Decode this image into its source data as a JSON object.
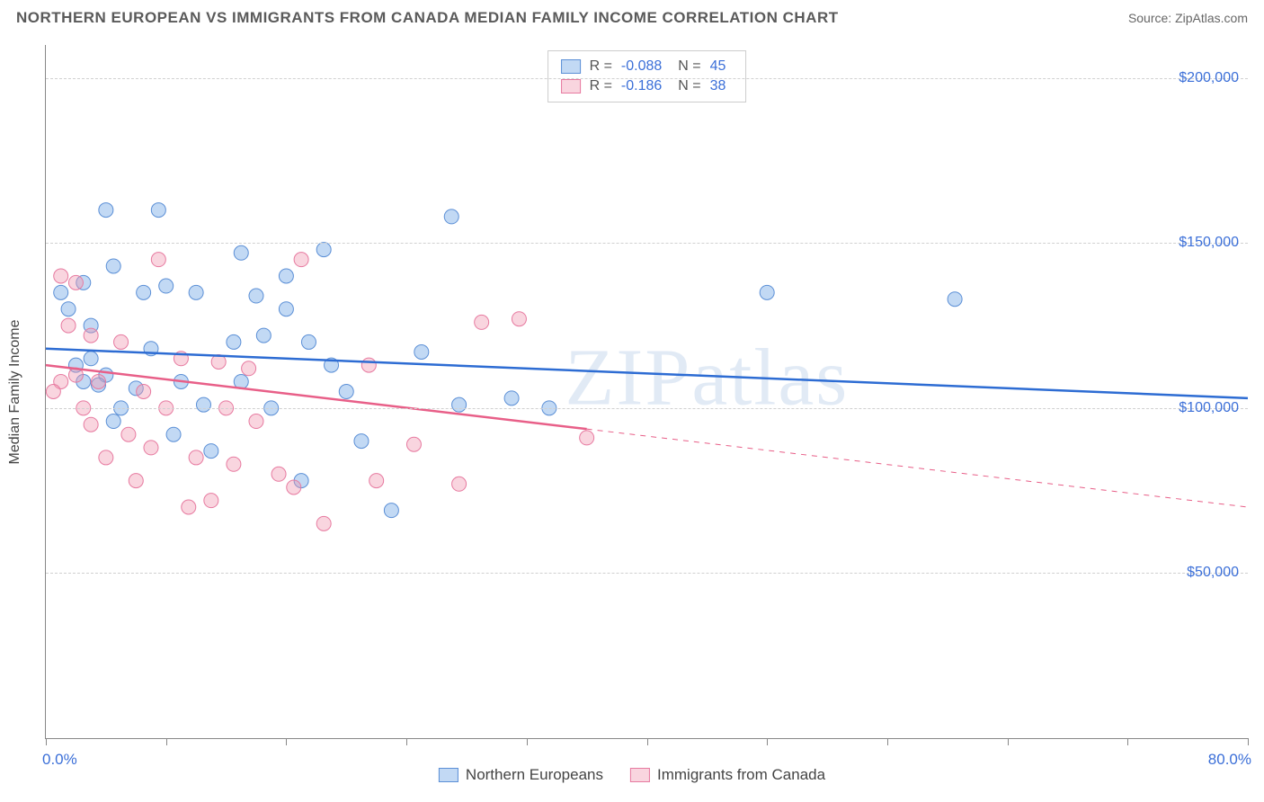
{
  "header": {
    "title": "NORTHERN EUROPEAN VS IMMIGRANTS FROM CANADA MEDIAN FAMILY INCOME CORRELATION CHART",
    "source": "Source: ZipAtlas.com"
  },
  "watermark": "ZIPatlas",
  "chart": {
    "type": "scatter",
    "y_axis_label": "Median Family Income",
    "background_color": "#ffffff",
    "grid_color": "#d0d0d0",
    "axis_color": "#888888",
    "x_range": {
      "min": 0,
      "max": 80,
      "min_label": "0.0%",
      "max_label": "80.0%"
    },
    "y_range": {
      "min": 0,
      "max": 210000
    },
    "y_ticks": [
      {
        "value": 50000,
        "label": "$50,000"
      },
      {
        "value": 100000,
        "label": "$100,000"
      },
      {
        "value": 150000,
        "label": "$150,000"
      },
      {
        "value": 200000,
        "label": "$200,000"
      }
    ],
    "x_tick_values": [
      0,
      8,
      16,
      24,
      32,
      40,
      48,
      56,
      64,
      72,
      80
    ],
    "axis_label_color": "#3b6fd8",
    "title_fontsize": 17,
    "label_fontsize": 16,
    "marker_radius": 8,
    "series": [
      {
        "name": "Northern Europeans",
        "color_fill": "rgba(120,170,230,0.45)",
        "color_stroke": "#5b8fd6",
        "line_color": "#2d6cd3",
        "line_width": 2.5,
        "R": "-0.088",
        "N": "45",
        "trend": {
          "x1": 0,
          "y1": 118000,
          "x2": 80,
          "y2": 103000,
          "solid_until_x": 80
        },
        "points": [
          {
            "x": 4.0,
            "y": 160000
          },
          {
            "x": 7.5,
            "y": 160000
          },
          {
            "x": 4.5,
            "y": 143000
          },
          {
            "x": 13.0,
            "y": 147000
          },
          {
            "x": 18.5,
            "y": 148000
          },
          {
            "x": 1.0,
            "y": 135000
          },
          {
            "x": 1.5,
            "y": 130000
          },
          {
            "x": 2.5,
            "y": 138000
          },
          {
            "x": 6.5,
            "y": 135000
          },
          {
            "x": 8.0,
            "y": 137000
          },
          {
            "x": 10.0,
            "y": 135000
          },
          {
            "x": 16.0,
            "y": 130000
          },
          {
            "x": 14.0,
            "y": 134000
          },
          {
            "x": 48.0,
            "y": 135000
          },
          {
            "x": 60.5,
            "y": 133000
          },
          {
            "x": 2.0,
            "y": 113000
          },
          {
            "x": 3.0,
            "y": 115000
          },
          {
            "x": 4.0,
            "y": 110000
          },
          {
            "x": 7.0,
            "y": 118000
          },
          {
            "x": 12.5,
            "y": 120000
          },
          {
            "x": 14.5,
            "y": 122000
          },
          {
            "x": 17.5,
            "y": 120000
          },
          {
            "x": 25.0,
            "y": 117000
          },
          {
            "x": 27.0,
            "y": 158000
          },
          {
            "x": 2.5,
            "y": 108000
          },
          {
            "x": 3.5,
            "y": 107000
          },
          {
            "x": 6.0,
            "y": 106000
          },
          {
            "x": 10.5,
            "y": 101000
          },
          {
            "x": 15.0,
            "y": 100000
          },
          {
            "x": 20.0,
            "y": 105000
          },
          {
            "x": 27.5,
            "y": 101000
          },
          {
            "x": 31.0,
            "y": 103000
          },
          {
            "x": 33.5,
            "y": 100000
          },
          {
            "x": 4.5,
            "y": 96000
          },
          {
            "x": 8.5,
            "y": 92000
          },
          {
            "x": 11.0,
            "y": 87000
          },
          {
            "x": 17.0,
            "y": 78000
          },
          {
            "x": 21.0,
            "y": 90000
          },
          {
            "x": 23.0,
            "y": 69000
          },
          {
            "x": 3.0,
            "y": 125000
          },
          {
            "x": 5.0,
            "y": 100000
          },
          {
            "x": 9.0,
            "y": 108000
          },
          {
            "x": 13.0,
            "y": 108000
          },
          {
            "x": 16.0,
            "y": 140000
          },
          {
            "x": 19.0,
            "y": 113000
          }
        ]
      },
      {
        "name": "Immigrants from Canada",
        "color_fill": "rgba(240,150,175,0.40)",
        "color_stroke": "#e77aa0",
        "line_color": "#e85f88",
        "line_width": 2.5,
        "R": "-0.186",
        "N": "38",
        "trend": {
          "x1": 0,
          "y1": 113000,
          "x2": 80,
          "y2": 70000,
          "solid_until_x": 36
        },
        "points": [
          {
            "x": 7.5,
            "y": 145000
          },
          {
            "x": 1.0,
            "y": 140000
          },
          {
            "x": 2.0,
            "y": 138000
          },
          {
            "x": 17.0,
            "y": 145000
          },
          {
            "x": 29.0,
            "y": 126000
          },
          {
            "x": 31.5,
            "y": 127000
          },
          {
            "x": 1.5,
            "y": 125000
          },
          {
            "x": 3.0,
            "y": 122000
          },
          {
            "x": 5.0,
            "y": 120000
          },
          {
            "x": 9.0,
            "y": 115000
          },
          {
            "x": 11.5,
            "y": 114000
          },
          {
            "x": 13.5,
            "y": 112000
          },
          {
            "x": 2.0,
            "y": 110000
          },
          {
            "x": 3.5,
            "y": 108000
          },
          {
            "x": 6.5,
            "y": 105000
          },
          {
            "x": 8.0,
            "y": 100000
          },
          {
            "x": 12.0,
            "y": 100000
          },
          {
            "x": 14.0,
            "y": 96000
          },
          {
            "x": 21.5,
            "y": 113000
          },
          {
            "x": 1.0,
            "y": 108000
          },
          {
            "x": 0.5,
            "y": 105000
          },
          {
            "x": 3.0,
            "y": 95000
          },
          {
            "x": 5.5,
            "y": 92000
          },
          {
            "x": 7.0,
            "y": 88000
          },
          {
            "x": 10.0,
            "y": 85000
          },
          {
            "x": 12.5,
            "y": 83000
          },
          {
            "x": 15.5,
            "y": 80000
          },
          {
            "x": 9.5,
            "y": 70000
          },
          {
            "x": 11.0,
            "y": 72000
          },
          {
            "x": 16.5,
            "y": 76000
          },
          {
            "x": 18.5,
            "y": 65000
          },
          {
            "x": 22.0,
            "y": 78000
          },
          {
            "x": 24.5,
            "y": 89000
          },
          {
            "x": 27.5,
            "y": 77000
          },
          {
            "x": 36.0,
            "y": 91000
          },
          {
            "x": 4.0,
            "y": 85000
          },
          {
            "x": 6.0,
            "y": 78000
          },
          {
            "x": 2.5,
            "y": 100000
          }
        ]
      }
    ]
  },
  "legend_bottom": [
    {
      "label": "Northern Europeans",
      "fill": "rgba(120,170,230,0.45)",
      "stroke": "#5b8fd6"
    },
    {
      "label": "Immigrants from Canada",
      "fill": "rgba(240,150,175,0.40)",
      "stroke": "#e77aa0"
    }
  ]
}
